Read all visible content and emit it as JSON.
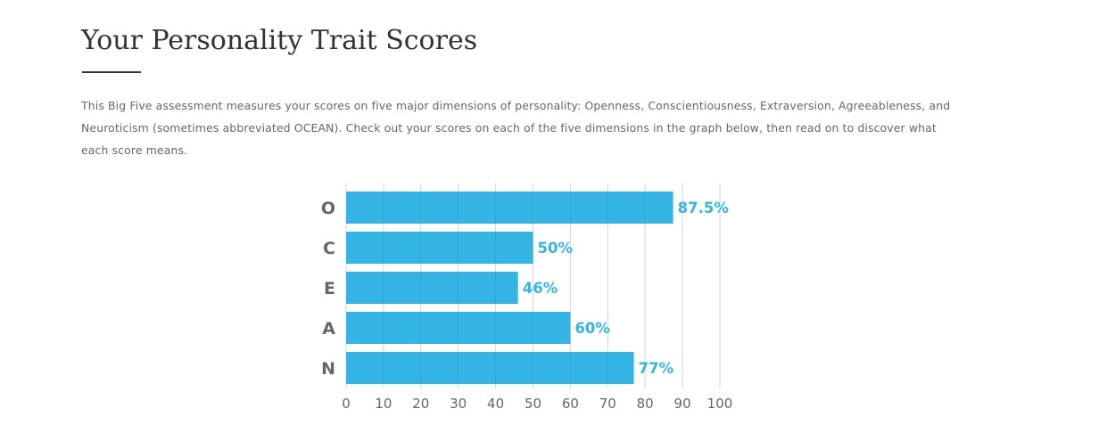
{
  "header": {
    "title": "Your Personality Trait Scores"
  },
  "intro": {
    "text": "This Big Five assessment measures your scores on five major dimensions of personality: Openness, Conscientiousness, Extraversion, Agreeableness, and Neuroticism (sometimes abbreviated OCEAN). Check out your scores on each of the five dimensions in the graph below, then read on to discover what each score means."
  },
  "chart_data": {
    "type": "bar",
    "orientation": "horizontal",
    "categories": [
      "O",
      "C",
      "E",
      "A",
      "N"
    ],
    "values": [
      87.5,
      50,
      46,
      60,
      77
    ],
    "value_labels": [
      "87.5%",
      "50%",
      "46%",
      "60%",
      "77%"
    ],
    "xlim": [
      0,
      100
    ],
    "xticks": [
      0,
      10,
      20,
      30,
      40,
      50,
      60,
      70,
      80,
      90,
      100
    ],
    "xtick_labels": [
      "0",
      "10",
      "20",
      "30",
      "40",
      "50",
      "60",
      "70",
      "80",
      "90",
      "100"
    ],
    "grid": true,
    "bar_color": "#34b5e5",
    "label_color": "#34b5e5",
    "category_color": "#666666",
    "grid_color": "#e6e6e6"
  }
}
